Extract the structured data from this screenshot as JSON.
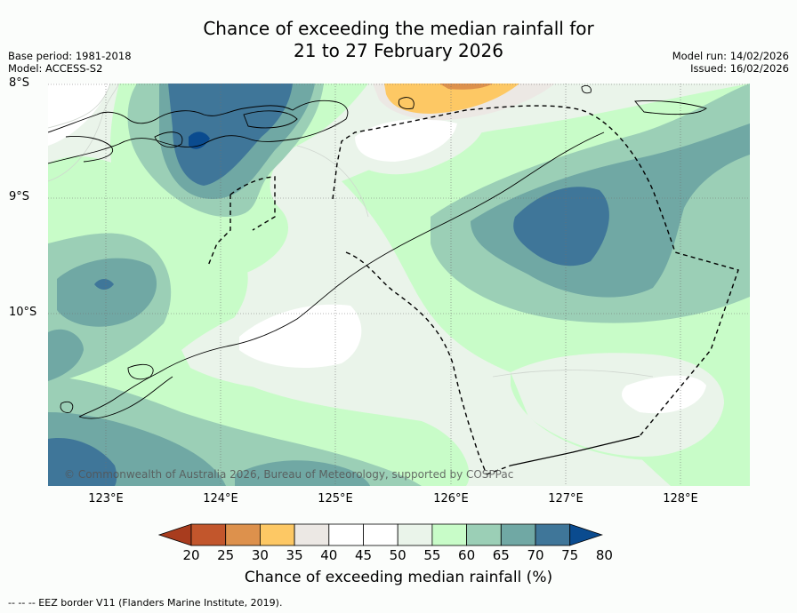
{
  "title": {
    "line1": "Chance of exceeding the median rainfall for",
    "line2": "21 to 27 February 2026"
  },
  "meta": {
    "base_period": "Base period: 1981-2018",
    "model": "Model: ACCESS-S2",
    "model_run": "Model run: 14/02/2026",
    "issued": "Issued: 16/02/2026"
  },
  "axes": {
    "lat_labels": [
      "8°S",
      "9°S",
      "10°S"
    ],
    "lon_labels": [
      "123°E",
      "124°E",
      "125°E",
      "126°E",
      "127°E",
      "128°E"
    ]
  },
  "copyright": "© Commonwealth of Australia 2026, Bureau of Meteorology, supported by COSPPac",
  "colorbar": {
    "ticks": [
      "20",
      "25",
      "30",
      "35",
      "40",
      "45",
      "50",
      "55",
      "60",
      "65",
      "70",
      "75",
      "80"
    ],
    "colors": [
      "#a83c1e",
      "#c2562c",
      "#dd914c",
      "#fdc864",
      "#ece8e4",
      "#ffffff",
      "#ffffff",
      "#eaf4ea",
      "#c8fcc8",
      "#9bcfb6",
      "#70a8a4",
      "#3f7699",
      "#0a4b8f"
    ],
    "label": "Chance of exceeding median rainfall (%)"
  },
  "footer": "--  --  -- EEZ border V11 (Flanders Marine Institute, 2019)."
}
